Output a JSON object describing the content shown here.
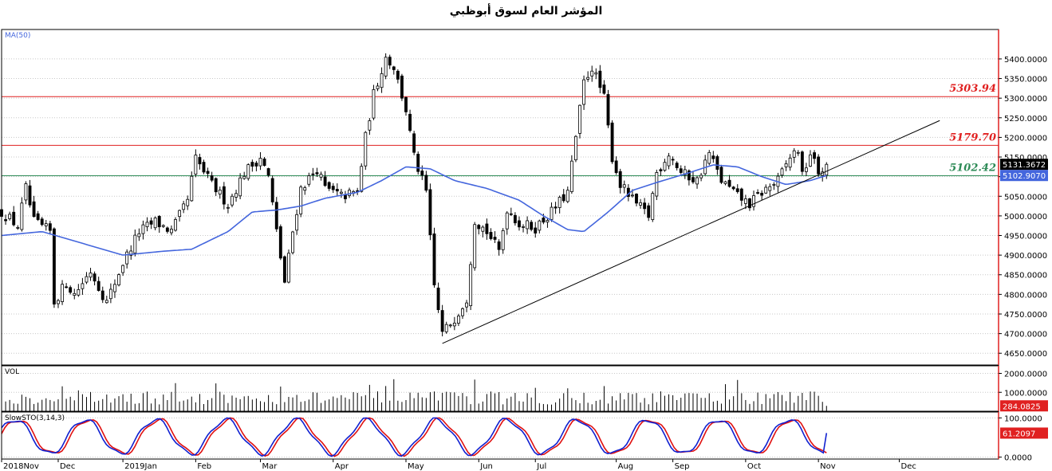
{
  "title": "المؤشر العام لسوق أبوظبي",
  "chart_data": {
    "type": "candlestick",
    "title": "المؤشر العام لسوق أبوظبي",
    "price_pane": {
      "indicator_label": "MA(50)",
      "ylim": [
        4620,
        5475
      ],
      "y_ticks": [
        "5400.0000",
        "5350.0000",
        "5300.0000",
        "5250.0000",
        "5200.0000",
        "5150.0000",
        "5100.0000",
        "5050.0000",
        "5000.0000",
        "4950.0000",
        "4900.0000",
        "4850.0000",
        "4800.0000",
        "4750.0000",
        "4700.0000",
        "4650.0000"
      ],
      "last_price": "5131.3672",
      "ma_value": "5102.9070",
      "levels": [
        {
          "value": 5303.94,
          "label": "5303.94",
          "color": "#e02020"
        },
        {
          "value": 5179.7,
          "label": "5179.70",
          "color": "#e02020"
        },
        {
          "value": 5102.42,
          "label": "5102.42",
          "color": "#2e8b57"
        }
      ],
      "trendline": {
        "start": [
          0.545,
          4675
        ],
        "end": [
          1.16,
          5243
        ]
      },
      "close_series": [
        {
          "t": 0.0,
          "v": 5010
        },
        {
          "t": 0.02,
          "v": 4975
        },
        {
          "t": 0.03,
          "v": 5070
        },
        {
          "t": 0.04,
          "v": 4985
        },
        {
          "t": 0.06,
          "v": 4960
        },
        {
          "t": 0.065,
          "v": 4780
        },
        {
          "t": 0.08,
          "v": 4830
        },
        {
          "t": 0.09,
          "v": 4800
        },
        {
          "t": 0.11,
          "v": 4860
        },
        {
          "t": 0.13,
          "v": 4780
        },
        {
          "t": 0.15,
          "v": 4880
        },
        {
          "t": 0.17,
          "v": 4960
        },
        {
          "t": 0.19,
          "v": 4985
        },
        {
          "t": 0.21,
          "v": 4960
        },
        {
          "t": 0.23,
          "v": 5040
        },
        {
          "t": 0.24,
          "v": 5145
        },
        {
          "t": 0.26,
          "v": 5080
        },
        {
          "t": 0.28,
          "v": 5030
        },
        {
          "t": 0.3,
          "v": 5110
        },
        {
          "t": 0.32,
          "v": 5150
        },
        {
          "t": 0.33,
          "v": 5100
        },
        {
          "t": 0.34,
          "v": 4960
        },
        {
          "t": 0.35,
          "v": 4830
        },
        {
          "t": 0.36,
          "v": 4960
        },
        {
          "t": 0.37,
          "v": 5070
        },
        {
          "t": 0.39,
          "v": 5120
        },
        {
          "t": 0.4,
          "v": 5070
        },
        {
          "t": 0.42,
          "v": 5050
        },
        {
          "t": 0.44,
          "v": 5060
        },
        {
          "t": 0.45,
          "v": 5200
        },
        {
          "t": 0.46,
          "v": 5310
        },
        {
          "t": 0.475,
          "v": 5405
        },
        {
          "t": 0.485,
          "v": 5380
        },
        {
          "t": 0.5,
          "v": 5270
        },
        {
          "t": 0.51,
          "v": 5150
        },
        {
          "t": 0.525,
          "v": 5060
        },
        {
          "t": 0.535,
          "v": 4820
        },
        {
          "t": 0.545,
          "v": 4700
        },
        {
          "t": 0.56,
          "v": 4740
        },
        {
          "t": 0.575,
          "v": 4790
        },
        {
          "t": 0.585,
          "v": 4990
        },
        {
          "t": 0.6,
          "v": 4960
        },
        {
          "t": 0.615,
          "v": 4910
        },
        {
          "t": 0.625,
          "v": 5020
        },
        {
          "t": 0.64,
          "v": 4980
        },
        {
          "t": 0.66,
          "v": 4970
        },
        {
          "t": 0.68,
          "v": 5010
        },
        {
          "t": 0.7,
          "v": 5060
        },
        {
          "t": 0.71,
          "v": 5200
        },
        {
          "t": 0.72,
          "v": 5340
        },
        {
          "t": 0.73,
          "v": 5380
        },
        {
          "t": 0.745,
          "v": 5300
        },
        {
          "t": 0.755,
          "v": 5150
        },
        {
          "t": 0.765,
          "v": 5080
        },
        {
          "t": 0.78,
          "v": 5040
        },
        {
          "t": 0.8,
          "v": 5000
        },
        {
          "t": 0.81,
          "v": 5110
        },
        {
          "t": 0.825,
          "v": 5160
        },
        {
          "t": 0.84,
          "v": 5110
        },
        {
          "t": 0.86,
          "v": 5090
        },
        {
          "t": 0.875,
          "v": 5160
        },
        {
          "t": 0.89,
          "v": 5090
        },
        {
          "t": 0.91,
          "v": 5050
        },
        {
          "t": 0.925,
          "v": 5030
        },
        {
          "t": 0.94,
          "v": 5060
        },
        {
          "t": 0.96,
          "v": 5090
        },
        {
          "t": 0.975,
          "v": 5150
        },
        {
          "t": 0.985,
          "v": 5170
        },
        {
          "t": 0.99,
          "v": 5100
        },
        {
          "t": 1.0,
          "v": 5160
        },
        {
          "t": 1.01,
          "v": 5110
        },
        {
          "t": 1.02,
          "v": 5131
        }
      ],
      "ma_series": [
        {
          "t": 0.0,
          "v": 4950
        },
        {
          "t": 0.05,
          "v": 4960
        },
        {
          "t": 0.1,
          "v": 4930
        },
        {
          "t": 0.15,
          "v": 4900
        },
        {
          "t": 0.2,
          "v": 4910
        },
        {
          "t": 0.235,
          "v": 4915
        },
        {
          "t": 0.28,
          "v": 4960
        },
        {
          "t": 0.31,
          "v": 5010
        },
        {
          "t": 0.34,
          "v": 5015
        },
        {
          "t": 0.37,
          "v": 5025
        },
        {
          "t": 0.4,
          "v": 5045
        },
        {
          "t": 0.44,
          "v": 5060
        },
        {
          "t": 0.47,
          "v": 5090
        },
        {
          "t": 0.5,
          "v": 5125
        },
        {
          "t": 0.53,
          "v": 5120
        },
        {
          "t": 0.56,
          "v": 5090
        },
        {
          "t": 0.6,
          "v": 5070
        },
        {
          "t": 0.64,
          "v": 5040
        },
        {
          "t": 0.67,
          "v": 5000
        },
        {
          "t": 0.7,
          "v": 4965
        },
        {
          "t": 0.72,
          "v": 4960
        },
        {
          "t": 0.75,
          "v": 5010
        },
        {
          "t": 0.78,
          "v": 5065
        },
        {
          "t": 0.81,
          "v": 5085
        },
        {
          "t": 0.85,
          "v": 5110
        },
        {
          "t": 0.88,
          "v": 5130
        },
        {
          "t": 0.91,
          "v": 5125
        },
        {
          "t": 0.94,
          "v": 5100
        },
        {
          "t": 0.97,
          "v": 5080
        },
        {
          "t": 1.0,
          "v": 5090
        },
        {
          "t": 1.02,
          "v": 5103
        }
      ]
    },
    "volume_pane": {
      "label": "VOL",
      "ylim": [
        0,
        2400
      ],
      "y_ticks": [
        "2000.0000",
        "1000.0000"
      ],
      "last_value": "284.0825"
    },
    "stoch_pane": {
      "label": "SlowSTO(3,14,3)",
      "ylim": [
        -5,
        115
      ],
      "y_ticks": [
        "100.0000",
        "0.0000"
      ],
      "last_value": "61.2097"
    },
    "x_labels": [
      {
        "t": 0.0,
        "label": "2018Nov"
      },
      {
        "t": 0.07,
        "label": "Dec"
      },
      {
        "t": 0.15,
        "label": "2019Jan"
      },
      {
        "t": 0.24,
        "label": "Feb"
      },
      {
        "t": 0.32,
        "label": "Mar"
      },
      {
        "t": 0.41,
        "label": "Apr"
      },
      {
        "t": 0.5,
        "label": "May"
      },
      {
        "t": 0.59,
        "label": "Jun"
      },
      {
        "t": 0.66,
        "label": "Jul"
      },
      {
        "t": 0.76,
        "label": "Aug"
      },
      {
        "t": 0.83,
        "label": "Sep"
      },
      {
        "t": 0.92,
        "label": "Oct"
      },
      {
        "t": 1.01,
        "label": "Nov"
      },
      {
        "t": 1.11,
        "label": "Dec"
      }
    ]
  }
}
